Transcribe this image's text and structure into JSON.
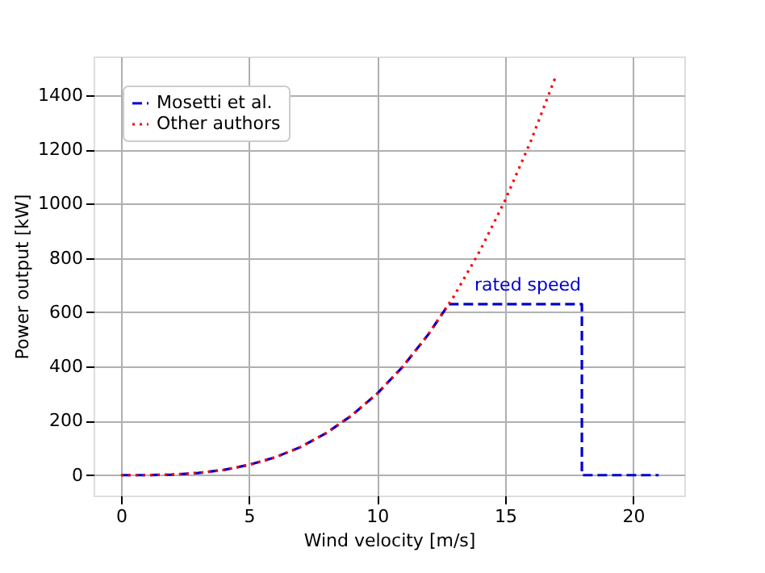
{
  "chart_data": {
    "type": "line",
    "xlabel": "Wind velocity [m/s]",
    "ylabel": "Power output [kW]",
    "xlim": [
      -1.07,
      22
    ],
    "ylim": [
      -75,
      1542
    ],
    "xticks": [
      0,
      5,
      10,
      15,
      20
    ],
    "yticks": [
      0,
      200,
      400,
      600,
      800,
      1000,
      1200,
      1400
    ],
    "grid": true,
    "legend": "top left",
    "marker": "none",
    "series": [
      {
        "name": "Mosetti et al.",
        "color": "#0000cc",
        "line_style": "dashed",
        "x": [
          0,
          1,
          2,
          3,
          4,
          5,
          6,
          7,
          8,
          9,
          10,
          11,
          12,
          12.8,
          18,
          18,
          21
        ],
        "values": [
          0,
          0,
          2,
          8,
          19,
          38,
          65,
          103,
          154,
          219,
          300,
          399,
          518,
          630,
          630,
          0,
          0
        ]
      },
      {
        "name": "Other authors",
        "color": "#ff0000",
        "line_style": "dotted",
        "x": [
          0,
          1,
          2,
          3,
          4,
          5,
          6,
          7,
          8,
          9,
          10,
          11,
          12,
          13,
          14,
          15,
          16,
          17
        ],
        "values": [
          0,
          0,
          2,
          8,
          19,
          38,
          65,
          103,
          154,
          219,
          300,
          399,
          518,
          659,
          823,
          1012,
          1229,
          1474
        ]
      }
    ],
    "annotations": [
      "rated speed"
    ]
  }
}
